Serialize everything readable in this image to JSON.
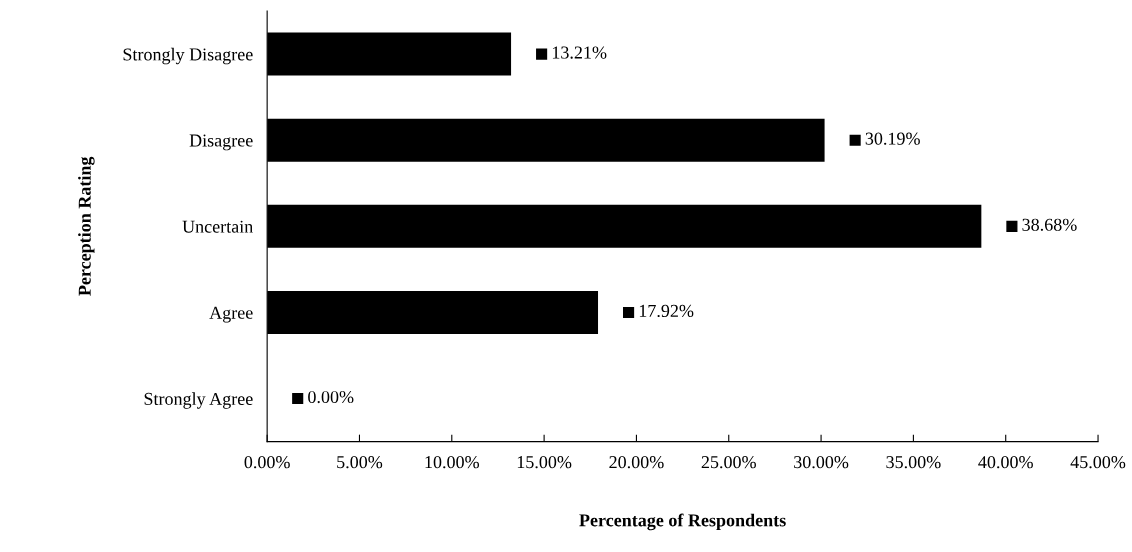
{
  "chart_data": {
    "type": "bar",
    "orientation": "horizontal",
    "xlabel": "Percentage of Respondents",
    "ylabel": "Perception Rating",
    "categories": [
      "Strongly Disagree",
      "Disagree",
      "Uncertain",
      "Agree",
      "Strongly Agree"
    ],
    "values": [
      13.21,
      30.19,
      38.68,
      17.92,
      0.0
    ],
    "color": "#000000",
    "value_labels": [
      "13.21%",
      "30.19%",
      "38.68%",
      "17.92%",
      "0.00%"
    ],
    "xlim": [
      0,
      45
    ],
    "xticks": [
      {
        "value": 0,
        "label": "0.00%"
      },
      {
        "value": 5,
        "label": "5.00%"
      },
      {
        "value": 10,
        "label": "10.00%"
      },
      {
        "value": 15,
        "label": "15.00%"
      },
      {
        "value": 20,
        "label": "20.00%"
      },
      {
        "value": 25,
        "label": "25.00%"
      },
      {
        "value": 30,
        "label": "30.00%"
      },
      {
        "value": 35,
        "label": "35.00%"
      },
      {
        "value": 40,
        "label": "40.00%"
      },
      {
        "value": 45,
        "label": "45.00%"
      }
    ],
    "grid": false,
    "legend": false
  }
}
